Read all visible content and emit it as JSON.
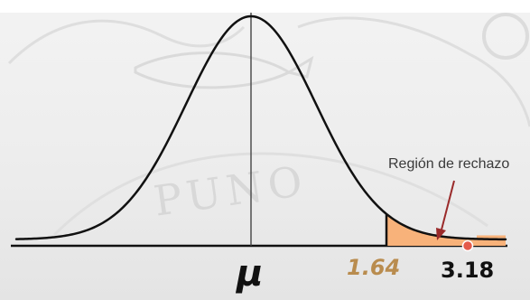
{
  "labels": {
    "mean_symbol": "μ",
    "critical_value": "1.64",
    "test_statistic": "3.18",
    "rejection_region": "Región de rechazo"
  },
  "watermark": {
    "text": "PUNO"
  },
  "colors": {
    "curve": "#111111",
    "rejection_fill": "#f8b27a",
    "rejection_edge": "#111111",
    "critical_label": "#b98c4e",
    "arrow": "#9a2a2a",
    "statistic_marker": "#e45a4a",
    "watermark": "#d6d6d6"
  }
}
